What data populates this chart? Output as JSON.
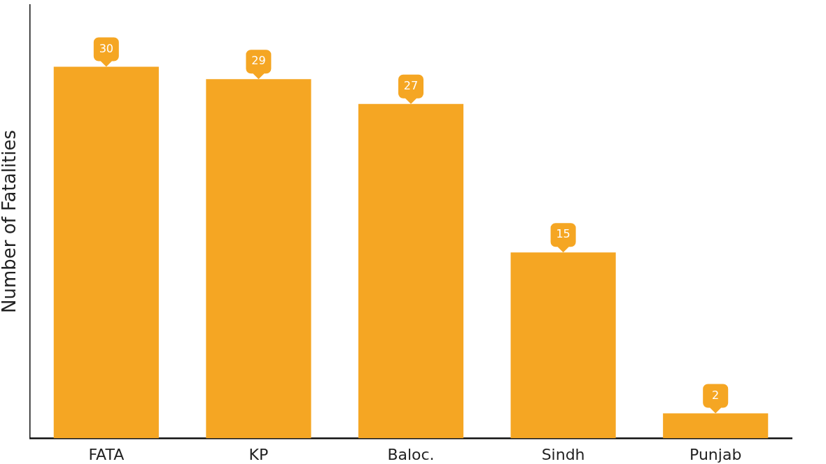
{
  "chart_data": {
    "type": "bar",
    "ylabel": "Number of Fatalities",
    "categories": [
      "FATA",
      "KP",
      "Baloc.",
      "Sindh",
      "Punjab"
    ],
    "values": [
      30,
      29,
      27,
      15,
      2
    ],
    "color": "#f5a623",
    "tick_labels": "x",
    "data_labels": true,
    "grid": false,
    "legend": false
  }
}
